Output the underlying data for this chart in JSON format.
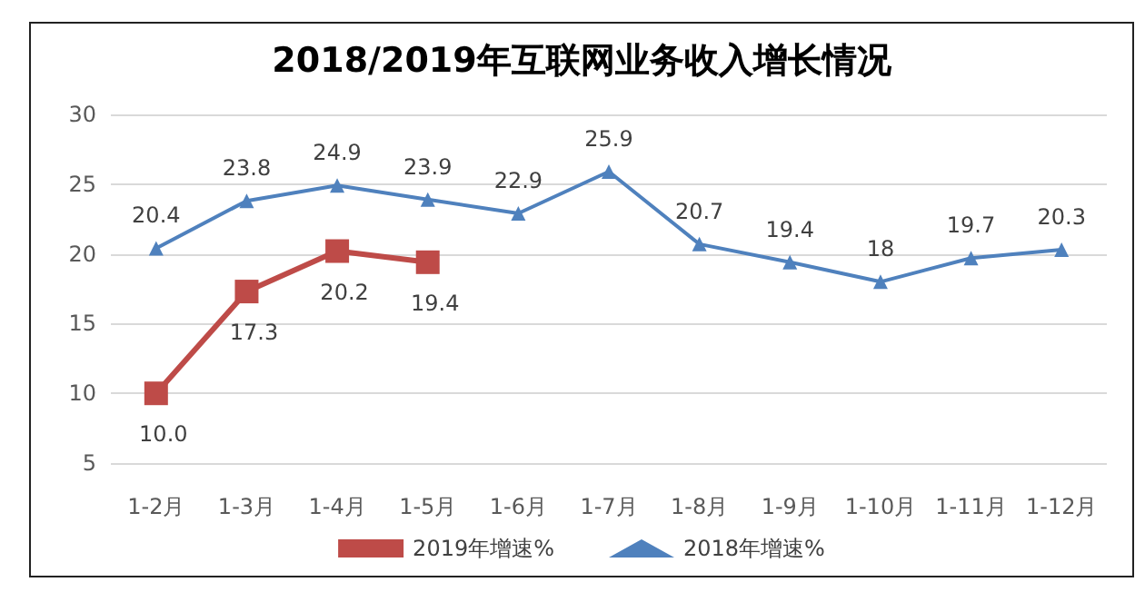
{
  "chart_data": {
    "type": "line",
    "title": "2018/2019年互联网业务收入增长情况",
    "categories": [
      "1-2月",
      "1-3月",
      "1-4月",
      "1-5月",
      "1-6月",
      "1-7月",
      "1-8月",
      "1-9月",
      "1-10月",
      "1-11月",
      "1-12月"
    ],
    "series": [
      {
        "name": "2019年增速%",
        "color": "#be4b48",
        "marker": "square",
        "values": [
          10.0,
          17.3,
          20.2,
          19.4,
          null,
          null,
          null,
          null,
          null,
          null,
          null
        ],
        "value_labels": [
          "10.0",
          "17.3",
          "20.2",
          "19.4",
          null,
          null,
          null,
          null,
          null,
          null,
          null
        ]
      },
      {
        "name": "2018年增速%",
        "color": "#4f81bd",
        "marker": "triangle",
        "values": [
          20.4,
          23.8,
          24.9,
          23.9,
          22.9,
          25.9,
          20.7,
          19.4,
          18,
          19.7,
          20.3
        ],
        "value_labels": [
          "20.4",
          "23.8",
          "24.9",
          "23.9",
          "22.9",
          "25.9",
          "20.7",
          "19.4",
          "18",
          "19.7",
          "20.3"
        ]
      }
    ],
    "ylim": [
      5,
      30
    ],
    "yticks": [
      5,
      10,
      15,
      20,
      25,
      30
    ],
    "grid": "y",
    "legend": "bottom"
  }
}
